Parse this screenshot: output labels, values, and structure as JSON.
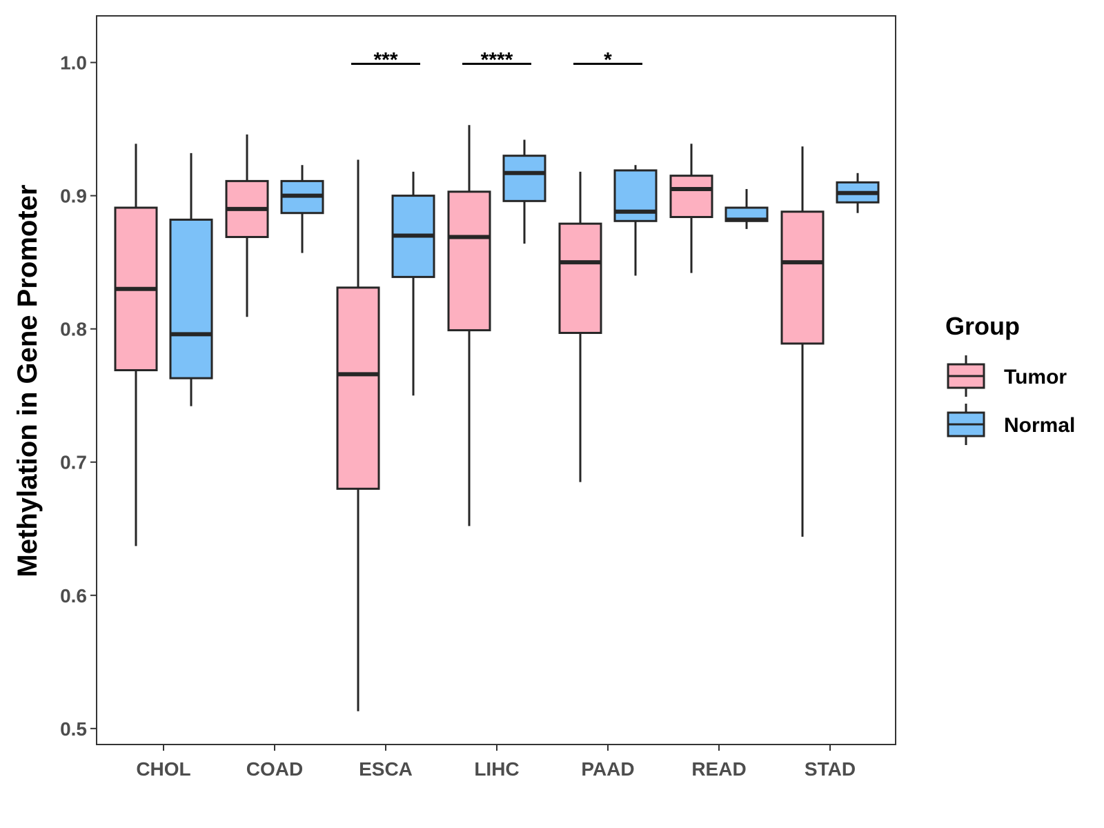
{
  "chart_data": {
    "type": "boxplot",
    "title": "",
    "xlabel": "",
    "ylabel": "Methylation in Gene Promoter",
    "ylim": [
      0.488,
      1.035
    ],
    "yticks": [
      0.5,
      0.6,
      0.7,
      0.8,
      0.9,
      1.0
    ],
    "ytick_labels": [
      "0.5",
      "0.6",
      "0.7",
      "0.8",
      "0.9",
      "1.0"
    ],
    "categories": [
      "CHOL",
      "COAD",
      "ESCA",
      "LIHC",
      "PAAD",
      "READ",
      "STAD"
    ],
    "legend": {
      "title": "Group",
      "position": "right",
      "entries": [
        "Tumor",
        "Normal"
      ]
    },
    "colors": {
      "Tumor": "#FDB0C0",
      "Normal": "#7CC1F8",
      "outline": "#262626"
    },
    "series": [
      {
        "name": "Tumor",
        "boxes": [
          {
            "min": 0.637,
            "q1": 0.769,
            "median": 0.83,
            "q3": 0.891,
            "max": 0.939
          },
          {
            "min": 0.809,
            "q1": 0.869,
            "median": 0.89,
            "q3": 0.911,
            "max": 0.946
          },
          {
            "min": 0.513,
            "q1": 0.68,
            "median": 0.766,
            "q3": 0.831,
            "max": 0.927
          },
          {
            "min": 0.652,
            "q1": 0.799,
            "median": 0.869,
            "q3": 0.903,
            "max": 0.953
          },
          {
            "min": 0.685,
            "q1": 0.797,
            "median": 0.85,
            "q3": 0.879,
            "max": 0.918
          },
          {
            "min": 0.842,
            "q1": 0.884,
            "median": 0.905,
            "q3": 0.915,
            "max": 0.939
          },
          {
            "min": 0.644,
            "q1": 0.789,
            "median": 0.85,
            "q3": 0.888,
            "max": 0.937
          }
        ]
      },
      {
        "name": "Normal",
        "boxes": [
          {
            "min": 0.742,
            "q1": 0.763,
            "median": 0.796,
            "q3": 0.882,
            "max": 0.932
          },
          {
            "min": 0.857,
            "q1": 0.887,
            "median": 0.9,
            "q3": 0.911,
            "max": 0.923
          },
          {
            "min": 0.75,
            "q1": 0.839,
            "median": 0.87,
            "q3": 0.9,
            "max": 0.918
          },
          {
            "min": 0.864,
            "q1": 0.896,
            "median": 0.917,
            "q3": 0.93,
            "max": 0.942
          },
          {
            "min": 0.84,
            "q1": 0.881,
            "median": 0.888,
            "q3": 0.919,
            "max": 0.923
          },
          {
            "min": 0.875,
            "q1": 0.881,
            "median": 0.882,
            "q3": 0.891,
            "max": 0.905
          },
          {
            "min": 0.887,
            "q1": 0.895,
            "median": 0.902,
            "q3": 0.91,
            "max": 0.917
          }
        ]
      }
    ],
    "significance": [
      {
        "category": "ESCA",
        "label": "***",
        "y": 0.999
      },
      {
        "category": "LIHC",
        "label": "****",
        "y": 0.999
      },
      {
        "category": "PAAD",
        "label": "*",
        "y": 0.999
      }
    ]
  }
}
